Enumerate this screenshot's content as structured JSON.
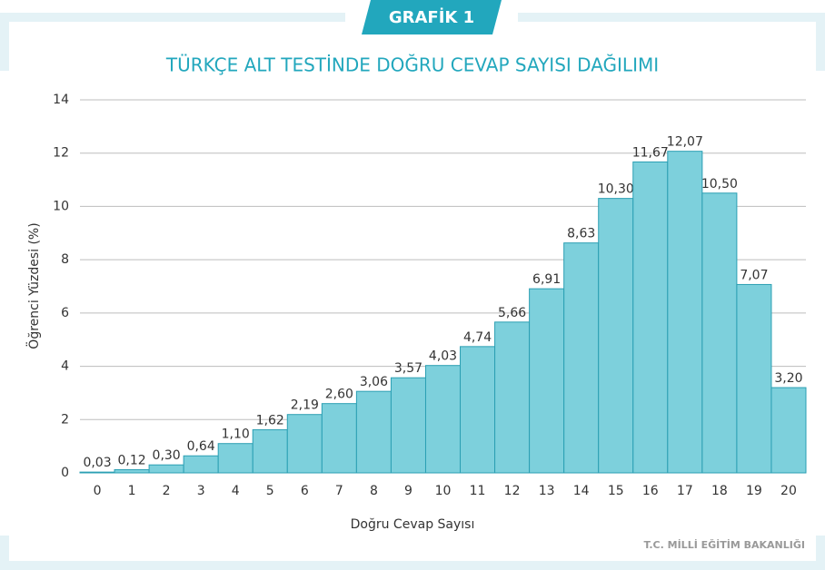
{
  "badge": "GRAFİK 1",
  "footer": "T.C. MİLLİ EĞİTİM BAKANLIĞI",
  "chart_data": {
    "type": "bar",
    "title": "TÜRKÇE ALT TESTİNDE DOĞRU CEVAP SAYISI DAĞILIMI",
    "x_label": "Doğru Cevap Sayısı",
    "y_label": "Öğrenci Yüzdesi (%)",
    "categories": [
      "0",
      "1",
      "2",
      "3",
      "4",
      "5",
      "6",
      "7",
      "8",
      "9",
      "10",
      "11",
      "12",
      "13",
      "14",
      "15",
      "16",
      "17",
      "18",
      "19",
      "20"
    ],
    "values": [
      0.03,
      0.12,
      0.3,
      0.64,
      1.1,
      1.62,
      2.19,
      2.6,
      3.06,
      3.57,
      4.03,
      4.74,
      5.66,
      6.91,
      8.63,
      10.3,
      11.67,
      12.07,
      10.5,
      7.07,
      3.2
    ],
    "value_labels": [
      "0,03",
      "0,12",
      "0,30",
      "0,64",
      "1,10",
      "1,62",
      "2,19",
      "2,60",
      "3,06",
      "3,57",
      "4,03",
      "4,74",
      "5,66",
      "6,91",
      "8,63",
      "10,30",
      "11,67",
      "12,07",
      "10,50",
      "7,07",
      "3,20"
    ],
    "color": "#7dd0dc",
    "edge_color": "#2b9fb3",
    "ylim": [
      0,
      14
    ],
    "yticks": [
      0,
      2,
      4,
      6,
      8,
      10,
      12,
      14
    ],
    "grid": true
  }
}
